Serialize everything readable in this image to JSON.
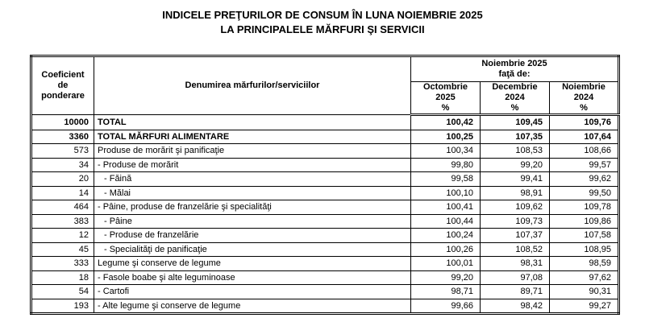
{
  "header": {
    "title_lines": [
      "INDICELE PREŢURILOR DE CONSUM ÎN LUNA NOIEMBRIE 2025",
      "LA PRINCIPALELE MĂRFURI ŞI SERVICII"
    ]
  },
  "table": {
    "columns": {
      "weight": [
        "Coeficient",
        "de",
        "ponderare"
      ],
      "name": "Denumirea mărfurilor/serviciilor",
      "group": [
        "Noiembrie 2025",
        "faţă de:"
      ],
      "periods": [
        [
          "Octombrie",
          "2025",
          "%"
        ],
        [
          "Decembrie",
          "2024",
          "%"
        ],
        [
          "Noiembrie",
          "2024",
          "%"
        ]
      ]
    },
    "rows": [
      {
        "weight": "10000",
        "name": "TOTAL",
        "values": [
          "100,42",
          "109,45",
          "109,76"
        ],
        "bold": true,
        "level": 0
      },
      {
        "weight": "3360",
        "name": "TOTAL MĂRFURI ALIMENTARE",
        "values": [
          "100,25",
          "107,35",
          "107,64"
        ],
        "bold": true,
        "level": 0
      },
      {
        "weight": "573",
        "name": "Produse de morărit şi panificaţie",
        "values": [
          "100,34",
          "108,53",
          "108,66"
        ],
        "bold": false,
        "level": 0
      },
      {
        "weight": "34",
        "name": "- Produse de morărit",
        "values": [
          "99,80",
          "99,20",
          "99,57"
        ],
        "bold": false,
        "level": 0
      },
      {
        "weight": "20",
        "name": "- Făină",
        "values": [
          "99,58",
          "99,41",
          "99,62"
        ],
        "bold": false,
        "level": 1
      },
      {
        "weight": "14",
        "name": "- Mălai",
        "values": [
          "100,10",
          "98,91",
          "99,50"
        ],
        "bold": false,
        "level": 1
      },
      {
        "weight": "464",
        "name": "- Pâine, produse de franzelărie şi specialităţi",
        "values": [
          "100,41",
          "109,62",
          "109,78"
        ],
        "bold": false,
        "level": 0
      },
      {
        "weight": "383",
        "name": "- Pâine",
        "values": [
          "100,44",
          "109,73",
          "109,86"
        ],
        "bold": false,
        "level": 1
      },
      {
        "weight": "12",
        "name": "- Produse de franzelărie",
        "values": [
          "100,24",
          "107,37",
          "107,58"
        ],
        "bold": false,
        "level": 1
      },
      {
        "weight": "45",
        "name": "- Specialităţi de panificaţie",
        "values": [
          "100,26",
          "108,52",
          "108,95"
        ],
        "bold": false,
        "level": 1
      },
      {
        "weight": "333",
        "name": "Legume şi conserve de legume",
        "values": [
          "100,01",
          "98,31",
          "98,59"
        ],
        "bold": false,
        "level": 0
      },
      {
        "weight": "18",
        "name": "- Fasole boabe şi alte leguminoase",
        "values": [
          "99,20",
          "97,08",
          "97,62"
        ],
        "bold": false,
        "level": 0
      },
      {
        "weight": "54",
        "name": "- Cartofi",
        "values": [
          "98,71",
          "89,71",
          "90,31"
        ],
        "bold": false,
        "level": 0
      },
      {
        "weight": "193",
        "name": "- Alte legume şi conserve de legume",
        "values": [
          "99,66",
          "98,42",
          "99,27"
        ],
        "bold": false,
        "level": 0
      }
    ]
  }
}
